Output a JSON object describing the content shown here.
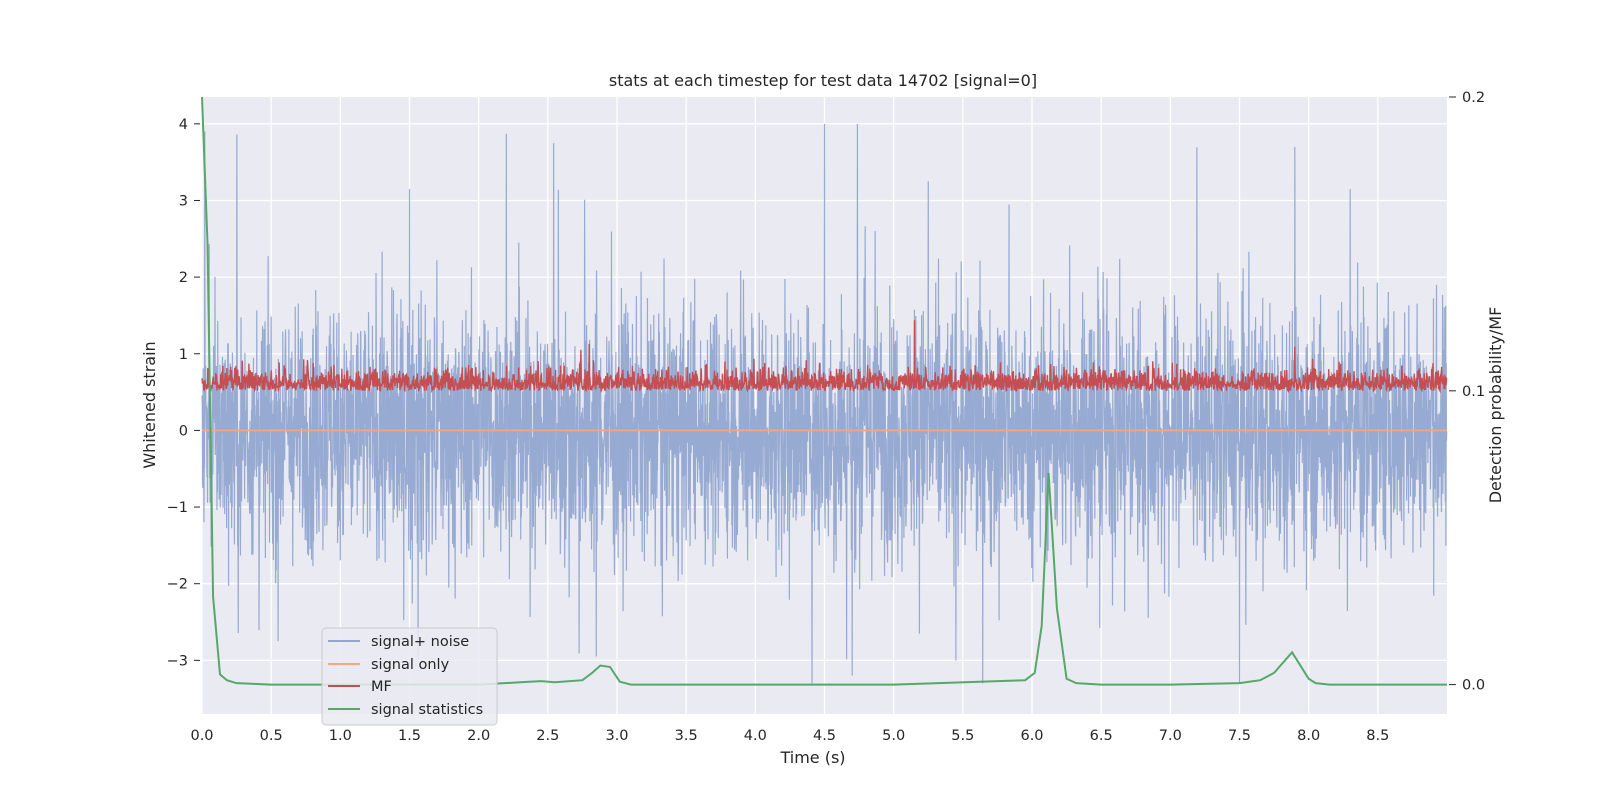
{
  "chart_data": {
    "type": "line",
    "title": "stats at each timestep for test data 14702 [signal=0]",
    "xlabel": "Time (s)",
    "ylabel": "Whitened strain",
    "ylabel_right": "Detection probability/MF",
    "xlim": [
      0,
      9.0
    ],
    "ylim": [
      -3.7,
      4.35
    ],
    "ylim_right": [
      -0.01,
      0.2
    ],
    "xticks": [
      0.0,
      0.5,
      1.0,
      1.5,
      2.0,
      2.5,
      3.0,
      3.5,
      4.0,
      4.5,
      5.0,
      5.5,
      6.0,
      6.5,
      7.0,
      7.5,
      8.0,
      8.5
    ],
    "xtick_labels": [
      "0.0",
      "0.5",
      "1.0",
      "1.5",
      "2.0",
      "2.5",
      "3.0",
      "3.5",
      "4.0",
      "4.5",
      "5.0",
      "5.5",
      "6.0",
      "6.5",
      "7.0",
      "7.5",
      "8.0",
      "8.5"
    ],
    "yticks": [
      -3,
      -2,
      -1,
      0,
      1,
      2,
      3,
      4
    ],
    "ytick_labels": [
      "−3",
      "−2",
      "−1",
      "0",
      "1",
      "2",
      "3",
      "4"
    ],
    "yticks_right": [
      0.0,
      0.1,
      0.2
    ],
    "ytick_labels_right": [
      "0.0",
      "0.1",
      "0.2"
    ],
    "grid": true,
    "legend_position": "lower-left",
    "series": [
      {
        "name": "signal+ noise",
        "axis": "left",
        "color": "#92a6d0",
        "style": "dense-noise",
        "amplitude_range": [
          -3.3,
          4.0
        ],
        "peaks": [
          [
            0.02,
            3.9
          ],
          [
            2.2,
            3.87
          ],
          [
            4.5,
            4.0
          ],
          [
            7.9,
            3.7
          ],
          [
            1.5,
            3.15
          ],
          [
            5.25,
            3.25
          ],
          [
            8.3,
            3.15
          ],
          [
            4.7,
            -3.2
          ],
          [
            7.5,
            -3.4
          ],
          [
            2.85,
            -2.95
          ],
          [
            0.55,
            -2.75
          ]
        ]
      },
      {
        "name": "signal only",
        "axis": "left",
        "color": "#f4a582",
        "x": [
          0.0,
          9.0
        ],
        "y": [
          0.0,
          0.0
        ]
      },
      {
        "name": "MF",
        "axis": "right",
        "color": "#c44e52",
        "style": "dense-noise",
        "baseline": 0.1,
        "amplitude_range": [
          0.095,
          0.125
        ],
        "peaks": [
          [
            5.15,
            0.124
          ],
          [
            2.8,
            0.116
          ],
          [
            7.9,
            0.115
          ]
        ]
      },
      {
        "name": "signal statistics",
        "axis": "right",
        "color": "#55a868",
        "x": [
          0.0,
          0.04,
          0.08,
          0.13,
          0.18,
          0.25,
          0.5,
          1.0,
          2.0,
          2.3,
          2.45,
          2.55,
          2.75,
          2.82,
          2.88,
          2.95,
          3.02,
          3.1,
          3.5,
          5.0,
          5.95,
          6.02,
          6.07,
          6.12,
          6.18,
          6.25,
          6.32,
          6.5,
          7.0,
          7.5,
          7.65,
          7.75,
          7.88,
          8.0,
          8.05,
          8.15,
          8.5,
          9.0
        ],
        "y": [
          0.2,
          0.15,
          0.03,
          0.0035,
          0.0015,
          0.0005,
          0.0,
          0.0,
          0.0,
          0.0008,
          0.0012,
          0.0008,
          0.0015,
          0.004,
          0.0065,
          0.006,
          0.001,
          0.0,
          0.0,
          0.0,
          0.0015,
          0.004,
          0.02,
          0.072,
          0.026,
          0.002,
          0.0005,
          0.0,
          0.0,
          0.0005,
          0.0015,
          0.004,
          0.011,
          0.002,
          0.0005,
          0.0,
          0.0,
          0.0
        ]
      }
    ]
  }
}
